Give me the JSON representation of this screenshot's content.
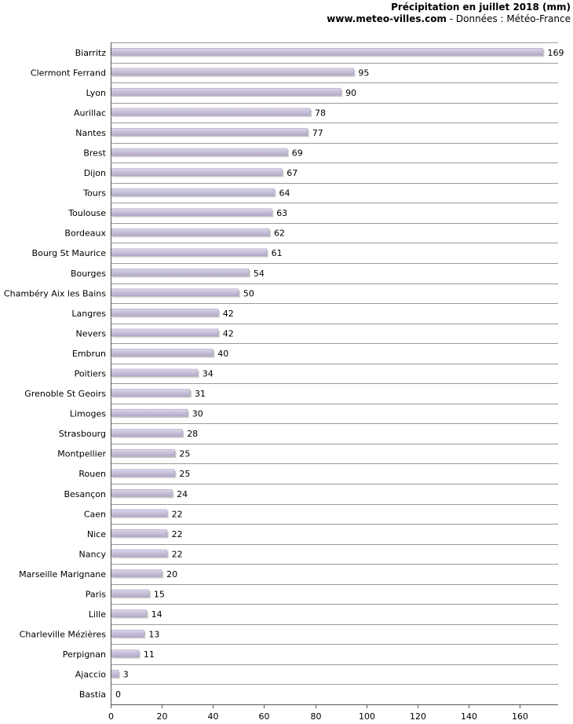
{
  "header": {
    "title": "Précipitation en juillet 2018 (mm)",
    "source_site": "www.meteo-villes.com",
    "source_rest": " - Données : Météo-France"
  },
  "chart_data": {
    "type": "bar",
    "orientation": "horizontal",
    "title": "Précipitation en juillet 2018 (mm)",
    "categories": [
      "Biarritz",
      "Clermont Ferrand",
      "Lyon",
      "Aurillac",
      "Nantes",
      "Brest",
      "Dijon",
      "Tours",
      "Toulouse",
      "Bordeaux",
      "Bourg St Maurice",
      "Bourges",
      "Chambéry Aix les Bains",
      "Langres",
      "Nevers",
      "Embrun",
      "Poitiers",
      "Grenoble St Geoirs",
      "Limoges",
      "Strasbourg",
      "Montpellier",
      "Rouen",
      "Besançon",
      "Caen",
      "Nice",
      "Nancy",
      "Marseille Marignane",
      "Paris",
      "Lille",
      "Charleville Mézières",
      "Perpignan",
      "Ajaccio",
      "Bastia"
    ],
    "values": [
      169,
      95,
      90,
      78,
      77,
      69,
      67,
      64,
      63,
      62,
      61,
      54,
      50,
      42,
      42,
      40,
      34,
      31,
      30,
      28,
      25,
      25,
      24,
      22,
      22,
      22,
      20,
      15,
      14,
      13,
      11,
      3,
      0
    ],
    "xlim": [
      0,
      175
    ],
    "xticks": [
      0,
      20,
      40,
      60,
      80,
      100,
      120,
      140,
      160
    ],
    "grid": "horizontal",
    "data_labels": true,
    "bar_color": "#c8bfd9"
  }
}
